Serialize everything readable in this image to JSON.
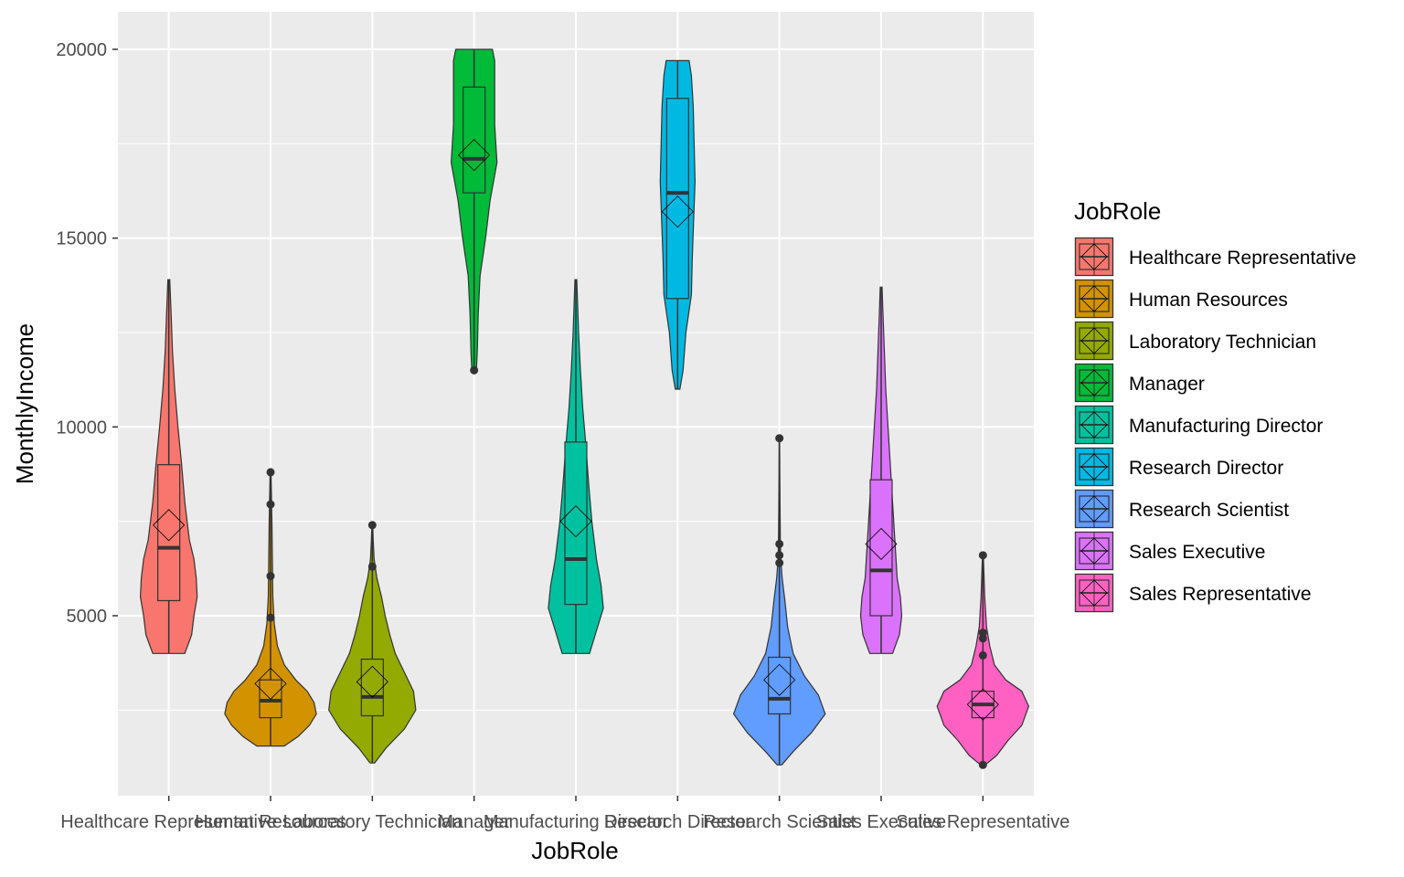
{
  "chart_data": {
    "type": "violin",
    "xlabel": "JobRole",
    "ylabel": "MonthlyIncome",
    "legend_title": "JobRole",
    "legend_position": "right",
    "grid": true,
    "ylim": [
      1000,
      20800
    ],
    "yticks": [
      5000,
      10000,
      15000,
      20000
    ],
    "categories": [
      "Healthcare Representative",
      "Human Resources",
      "Laboratory Technician",
      "Manager",
      "Manufacturing Director",
      "Research Director",
      "Research Scientist",
      "Sales Executive",
      "Sales Representative"
    ],
    "colors": [
      "#F8766D",
      "#D39200",
      "#93AA00",
      "#00BA38",
      "#00C19F",
      "#00B9E3",
      "#619CFF",
      "#DB72FB",
      "#FF61C3"
    ],
    "series": [
      {
        "category": "Healthcare Representative",
        "min": 4000,
        "q1": 5400,
        "median": 6800,
        "q3": 9000,
        "max": 13900,
        "mean": 7400,
        "outliers": [],
        "density": [
          [
            4000,
            0.35
          ],
          [
            4500,
            0.5
          ],
          [
            5000,
            0.55
          ],
          [
            5500,
            0.62
          ],
          [
            6000,
            0.6
          ],
          [
            6500,
            0.55
          ],
          [
            7000,
            0.45
          ],
          [
            8000,
            0.35
          ],
          [
            9000,
            0.28
          ],
          [
            10000,
            0.2
          ],
          [
            11000,
            0.13
          ],
          [
            12000,
            0.08
          ],
          [
            13000,
            0.05
          ],
          [
            13900,
            0.02
          ]
        ]
      },
      {
        "category": "Human Resources",
        "min": 1550,
        "q1": 2300,
        "median": 2750,
        "q3": 3300,
        "max": 8800,
        "mean": 3200,
        "outliers": [
          4950,
          6050,
          7950,
          8800
        ],
        "density": [
          [
            1550,
            0.3
          ],
          [
            1800,
            0.6
          ],
          [
            2100,
            0.85
          ],
          [
            2400,
            1.0
          ],
          [
            2700,
            0.95
          ],
          [
            3000,
            0.8
          ],
          [
            3300,
            0.55
          ],
          [
            3700,
            0.3
          ],
          [
            4200,
            0.15
          ],
          [
            4800,
            0.08
          ],
          [
            5500,
            0.05
          ],
          [
            6500,
            0.04
          ],
          [
            7500,
            0.03
          ],
          [
            8800,
            0.01
          ]
        ]
      },
      {
        "category": "Laboratory Technician",
        "min": 1100,
        "q1": 2350,
        "median": 2850,
        "q3": 3850,
        "max": 7400,
        "mean": 3250,
        "outliers": [
          6300,
          7400
        ],
        "density": [
          [
            1100,
            0.05
          ],
          [
            1500,
            0.3
          ],
          [
            2000,
            0.7
          ],
          [
            2500,
            0.95
          ],
          [
            3000,
            0.9
          ],
          [
            3500,
            0.7
          ],
          [
            4000,
            0.5
          ],
          [
            4500,
            0.38
          ],
          [
            5000,
            0.28
          ],
          [
            5500,
            0.2
          ],
          [
            6000,
            0.1
          ],
          [
            6500,
            0.04
          ],
          [
            7000,
            0.02
          ],
          [
            7400,
            0.01
          ]
        ]
      },
      {
        "category": "Manager",
        "min": 11500,
        "q1": 16200,
        "median": 17100,
        "q3": 19000,
        "max": 20000,
        "mean": 17200,
        "outliers": [
          11500
        ],
        "density": [
          [
            11500,
            0.05
          ],
          [
            12000,
            0.07
          ],
          [
            13000,
            0.09
          ],
          [
            14000,
            0.13
          ],
          [
            15000,
            0.25
          ],
          [
            16000,
            0.35
          ],
          [
            17000,
            0.5
          ],
          [
            18000,
            0.45
          ],
          [
            19000,
            0.45
          ],
          [
            19700,
            0.45
          ],
          [
            20000,
            0.4
          ]
        ]
      },
      {
        "category": "Manufacturing Director",
        "min": 4000,
        "q1": 5300,
        "median": 6500,
        "q3": 9600,
        "max": 13900,
        "mean": 7500,
        "outliers": [],
        "density": [
          [
            4000,
            0.3
          ],
          [
            4600,
            0.45
          ],
          [
            5200,
            0.6
          ],
          [
            5800,
            0.55
          ],
          [
            6500,
            0.45
          ],
          [
            7500,
            0.35
          ],
          [
            8500,
            0.28
          ],
          [
            9500,
            0.22
          ],
          [
            10500,
            0.15
          ],
          [
            11500,
            0.1
          ],
          [
            12500,
            0.06
          ],
          [
            13900,
            0.02
          ]
        ]
      },
      {
        "category": "Research Director",
        "min": 11000,
        "q1": 13400,
        "median": 16200,
        "q3": 18700,
        "max": 19700,
        "mean": 15700,
        "outliers": [],
        "density": [
          [
            11000,
            0.05
          ],
          [
            11500,
            0.12
          ],
          [
            12500,
            0.18
          ],
          [
            13500,
            0.3
          ],
          [
            14500,
            0.32
          ],
          [
            15500,
            0.35
          ],
          [
            16500,
            0.38
          ],
          [
            17500,
            0.36
          ],
          [
            18500,
            0.34
          ],
          [
            19300,
            0.3
          ],
          [
            19700,
            0.25
          ]
        ]
      },
      {
        "category": "Research Scientist",
        "min": 1050,
        "q1": 2400,
        "median": 2800,
        "q3": 3900,
        "max": 9700,
        "mean": 3300,
        "outliers": [
          6400,
          6600,
          6900,
          9700
        ],
        "density": [
          [
            1050,
            0.05
          ],
          [
            1400,
            0.3
          ],
          [
            1900,
            0.7
          ],
          [
            2400,
            1.0
          ],
          [
            2900,
            0.85
          ],
          [
            3400,
            0.55
          ],
          [
            4000,
            0.3
          ],
          [
            4700,
            0.18
          ],
          [
            5400,
            0.12
          ],
          [
            6000,
            0.06
          ],
          [
            6500,
            0.03
          ],
          [
            7000,
            0.02
          ],
          [
            8500,
            0.01
          ],
          [
            9700,
            0.005
          ]
        ]
      },
      {
        "category": "Sales Executive",
        "min": 4000,
        "q1": 5000,
        "median": 6200,
        "q3": 8600,
        "max": 13700,
        "mean": 6900,
        "outliers": [],
        "density": [
          [
            4000,
            0.25
          ],
          [
            4500,
            0.4
          ],
          [
            5000,
            0.45
          ],
          [
            5500,
            0.42
          ],
          [
            6000,
            0.35
          ],
          [
            7000,
            0.3
          ],
          [
            8000,
            0.25
          ],
          [
            9000,
            0.2
          ],
          [
            10000,
            0.15
          ],
          [
            11000,
            0.1
          ],
          [
            12000,
            0.07
          ],
          [
            13000,
            0.04
          ],
          [
            13700,
            0.02
          ]
        ]
      },
      {
        "category": "Sales Representative",
        "min": 1050,
        "q1": 2300,
        "median": 2650,
        "q3": 3000,
        "max": 6600,
        "mean": 2650,
        "outliers": [
          1050,
          3950,
          4400,
          4550,
          6600
        ],
        "density": [
          [
            1050,
            0.05
          ],
          [
            1300,
            0.3
          ],
          [
            1700,
            0.55
          ],
          [
            2100,
            0.85
          ],
          [
            2600,
            1.0
          ],
          [
            3000,
            0.85
          ],
          [
            3300,
            0.5
          ],
          [
            3700,
            0.25
          ],
          [
            4200,
            0.15
          ],
          [
            4700,
            0.08
          ],
          [
            5500,
            0.04
          ],
          [
            6600,
            0.01
          ]
        ]
      }
    ]
  }
}
